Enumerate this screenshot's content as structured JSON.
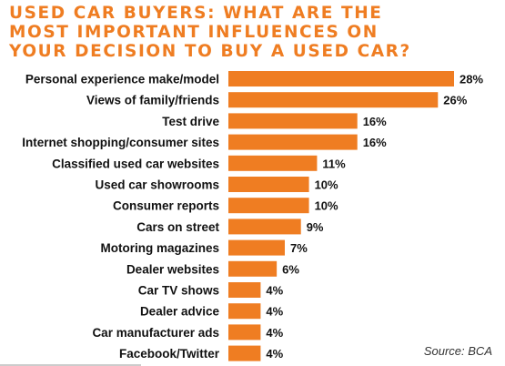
{
  "chart_data": {
    "type": "bar",
    "orientation": "horizontal",
    "title_lines": [
      "USED CAR BUYERS: WHAT ARE THE",
      "MOST IMPORTANT INFLUENCES ON",
      "YOUR DECISION TO BUY A USED CAR?"
    ],
    "categories": [
      "Personal experience make/model",
      "Views of family/friends",
      "Test drive",
      "Internet shopping/consumer sites",
      "Classified used car websites",
      "Used car showrooms",
      "Consumer reports",
      "Cars on street",
      "Motoring magazines",
      "Dealer websites",
      "Car TV shows",
      "Dealer advice",
      "Car manufacturer ads",
      "Facebook/Twitter"
    ],
    "values": [
      28,
      26,
      16,
      16,
      11,
      10,
      10,
      9,
      7,
      6,
      4,
      4,
      4,
      4
    ],
    "value_suffix": "%",
    "xlim": [
      0,
      28
    ],
    "bar_color": "#ef7d22",
    "title_color": "#ef7d22",
    "grid": false,
    "legend": false
  },
  "source": "Source: BCA"
}
